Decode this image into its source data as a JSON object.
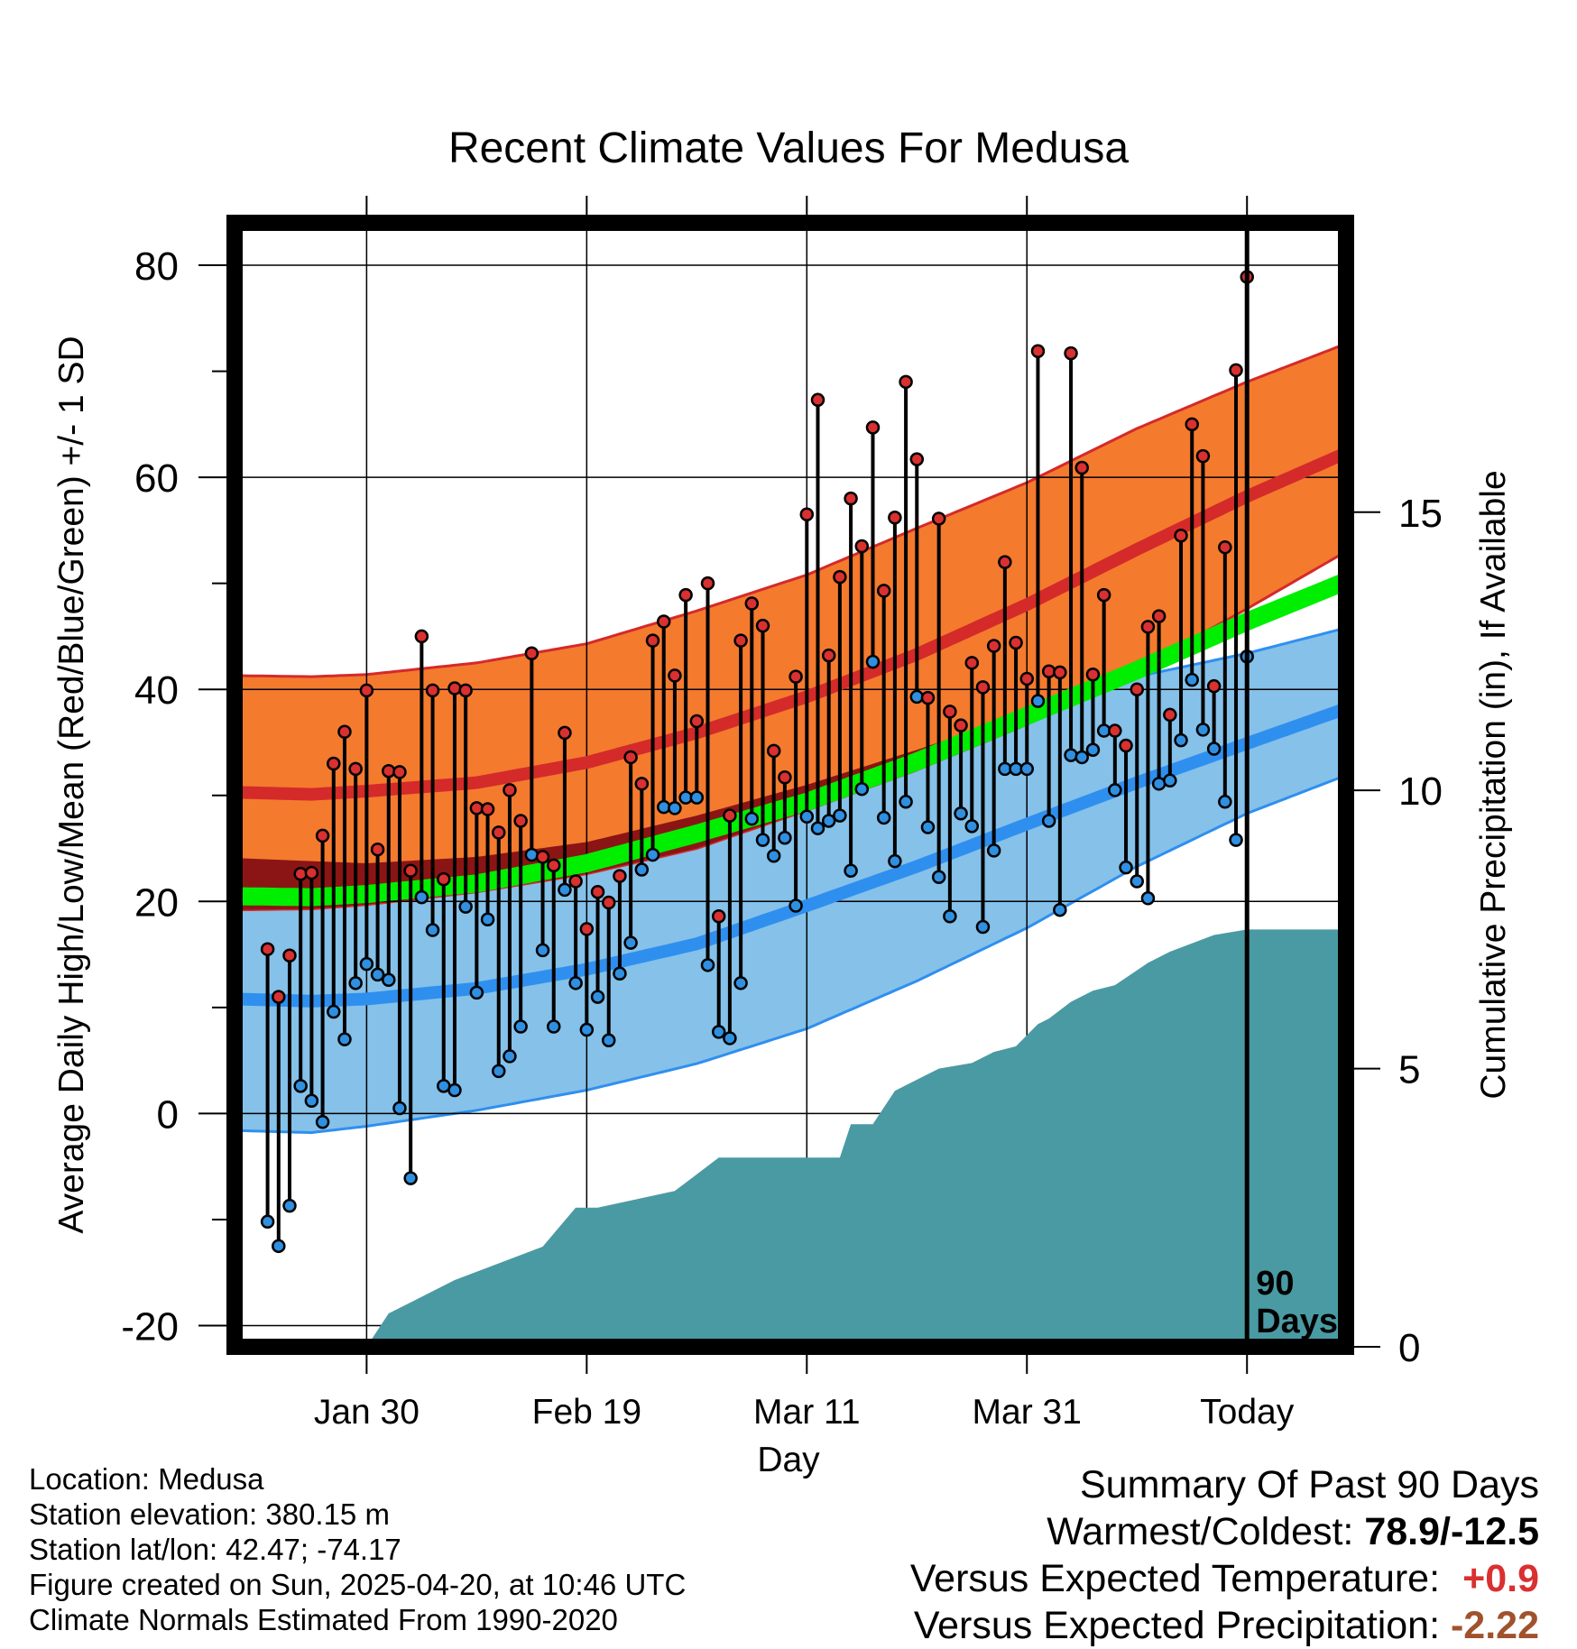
{
  "chart_data": {
    "type": "line",
    "title": "Recent Climate Values For Medusa",
    "xlabel": "Day",
    "ylabel": "Average Daily High/Low/Mean (Red/Blue/Green) +/- 1 SD",
    "y2label": "Cumulative Precipitation (in), If Available",
    "x_range_days": [
      -92,
      9
    ],
    "ylim": [
      -22,
      84
    ],
    "y2lim": [
      0,
      20.2
    ],
    "grid": true,
    "x_ticks": [
      {
        "day": -80,
        "label": "Jan 30"
      },
      {
        "day": -60,
        "label": "Feb 19"
      },
      {
        "day": -40,
        "label": "Mar 11"
      },
      {
        "day": -20,
        "label": "Mar 31"
      },
      {
        "day": 0,
        "label": "Today"
      }
    ],
    "y_ticks": [
      80,
      60,
      40,
      20,
      0,
      -20
    ],
    "y2_ticks": [
      15,
      10,
      5,
      0
    ],
    "today_marker_label": "90\nDays",
    "normals": {
      "days": [
        -92,
        -85,
        -80,
        -70,
        -60,
        -50,
        -40,
        -30,
        -20,
        -10,
        0,
        9
      ],
      "high_mean": [
        30.3,
        30.1,
        30.4,
        31.2,
        33.1,
        35.9,
        39.3,
        43.3,
        48.0,
        53.2,
        58.2,
        62.3
      ],
      "high_sd_upper": [
        41.3,
        41.2,
        41.4,
        42.5,
        44.3,
        47.4,
        50.8,
        55.2,
        59.5,
        64.6,
        69.0,
        72.6
      ],
      "high_sd_lower": [
        19.2,
        19.3,
        19.7,
        20.9,
        22.6,
        25.0,
        28.6,
        32.4,
        36.7,
        41.9,
        47.6,
        53.0
      ],
      "mean_mean": [
        20.5,
        20.4,
        20.7,
        21.7,
        23.6,
        26.4,
        29.4,
        33.2,
        37.5,
        41.8,
        46.4,
        50.2
      ],
      "low_mean": [
        10.8,
        10.6,
        10.8,
        11.8,
        13.6,
        16.0,
        19.6,
        23.3,
        27.3,
        31.2,
        34.9,
        38.2
      ],
      "low_sd_upper": [
        24.1,
        23.8,
        23.6,
        24.2,
        25.6,
        28.1,
        31.0,
        34.3,
        37.8,
        41.2,
        43.4,
        45.8
      ],
      "low_sd_lower": [
        -1.6,
        -1.8,
        -1.2,
        0.3,
        2.2,
        4.7,
        8.0,
        12.5,
        17.5,
        23.3,
        28.3,
        31.9
      ]
    },
    "series": [
      {
        "name": "High",
        "values": [
          15.5,
          11.0,
          14.9,
          22.6,
          22.7,
          26.2,
          33.0,
          36.0,
          32.5,
          39.9,
          24.9,
          32.3,
          32.2,
          22.9,
          45.0,
          39.9,
          22.1,
          40.1,
          39.9,
          28.8,
          28.7,
          26.5,
          30.5,
          27.6,
          43.4,
          24.2,
          23.4,
          35.9,
          21.9,
          17.4,
          20.9,
          19.9,
          22.4,
          33.6,
          31.1,
          44.6,
          46.4,
          41.3,
          48.9,
          37.0,
          50.0,
          18.6,
          28.1,
          44.6,
          48.1,
          46.0,
          34.2,
          31.7,
          41.2,
          56.5,
          67.3,
          43.2,
          50.6,
          58.0,
          53.5,
          64.7,
          49.3,
          56.2,
          69.0,
          61.7,
          39.2,
          56.1,
          37.9,
          36.6,
          42.5,
          40.2,
          44.1,
          52.0,
          44.4,
          41.0,
          71.9,
          41.7,
          41.6,
          71.7,
          60.9,
          41.4,
          48.9,
          36.1,
          34.7,
          40.0,
          45.9,
          46.9,
          37.6,
          54.5,
          65.0,
          62.0,
          40.3,
          53.4,
          70.1,
          78.9
        ]
      },
      {
        "name": "Low",
        "values": [
          -10.2,
          -12.5,
          -8.7,
          2.6,
          1.2,
          -0.8,
          9.6,
          7.0,
          12.3,
          14.1,
          13.1,
          12.6,
          0.5,
          -6.1,
          20.4,
          17.3,
          2.6,
          2.2,
          19.5,
          11.4,
          18.3,
          4.0,
          5.4,
          8.2,
          24.4,
          15.4,
          8.2,
          21.1,
          12.3,
          7.9,
          11.0,
          6.9,
          13.2,
          16.1,
          23.0,
          24.4,
          28.9,
          28.8,
          29.8,
          29.8,
          14.0,
          7.7,
          7.1,
          12.3,
          27.8,
          25.8,
          24.3,
          26.0,
          19.6,
          28.0,
          26.9,
          27.6,
          28.1,
          22.9,
          30.6,
          42.6,
          27.9,
          23.8,
          29.4,
          39.3,
          27.0,
          22.3,
          18.6,
          28.3,
          27.1,
          17.6,
          24.8,
          32.5,
          32.5,
          32.5,
          38.9,
          27.6,
          19.2,
          33.8,
          33.6,
          34.3,
          36.1,
          30.5,
          23.2,
          21.9,
          20.3,
          31.1,
          31.4,
          35.2,
          40.9,
          36.2,
          34.4,
          29.4,
          25.8,
          43.1
        ]
      }
    ],
    "cumulative_precipitation": {
      "days": [
        -92,
        -80,
        -78,
        -76,
        -72,
        -68,
        -64,
        -61,
        -59,
        -52,
        -48,
        -45,
        -43,
        -37,
        -36,
        -34,
        -32,
        -30,
        -28,
        -25,
        -23,
        -21,
        -19,
        -18,
        -16,
        -14,
        -12,
        -9,
        -7,
        -3,
        0,
        9
      ],
      "values": [
        0,
        0,
        0.6,
        0.8,
        1.2,
        1.5,
        1.8,
        2.5,
        2.5,
        2.8,
        3.4,
        3.4,
        3.4,
        3.4,
        4.0,
        4.0,
        4.6,
        4.8,
        5.0,
        5.1,
        5.3,
        5.4,
        5.8,
        5.9,
        6.2,
        6.4,
        6.5,
        6.9,
        7.1,
        7.4,
        7.5,
        7.5
      ]
    }
  },
  "info": {
    "location": "Location: Medusa",
    "elevation": "Station elevation: 380.15 m",
    "latlon": "Station lat/lon: 42.47; -74.17",
    "created": "Figure created on Sun, 2025-04-20, at 10:46 UTC",
    "normals_period": "Climate Normals Estimated From 1990-2020"
  },
  "summary": {
    "heading": "Summary Of Past 90 Days",
    "warm_cold_label": "Warmest/Coldest:",
    "warm_cold_value": "78.9/-12.5",
    "temp_label": "Versus Expected Temperature:",
    "temp_value": "+0.9",
    "temp_color": "#d93030",
    "precip_label": "Versus Expected Precipitation:",
    "precip_value": "-2.22",
    "precip_color": "#a0522d"
  },
  "colors": {
    "high_band": "#f47a2e",
    "high_line": "#d42a2a",
    "low_band": "#85c1e9",
    "low_line": "#2f8fef",
    "mean_line": "#00ee00",
    "overlap_band": "#8b1515",
    "precip_fill": "#4a9aa3",
    "high_marker": "#d93030",
    "low_marker": "#2f8fe0"
  }
}
